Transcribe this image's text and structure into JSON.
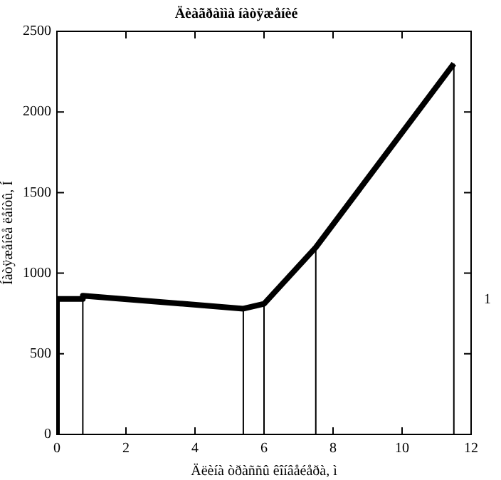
{
  "chart_data": {
    "type": "line",
    "title": "Äèàãðàììà íàòÿæåíèé",
    "xlabel": "Äëèíà òðàññû êîíâåéåðà, ì",
    "ylabel": "Íàòÿæåíèå ëåíòû, Í",
    "series": [
      {
        "color": "#000000",
        "x": [
          0,
          0,
          0.75,
          0.75,
          5.4,
          6,
          7.5,
          11.5
        ],
        "values": [
          0,
          840,
          840,
          860,
          780,
          810,
          1160,
          2300
        ]
      },
      {
        "color": "#000000",
        "x": [
          0.75,
          0.75
        ],
        "values": [
          0,
          860
        ]
      },
      {
        "color": "#000000",
        "x": [
          5.4,
          5.4
        ],
        "values": [
          0,
          780
        ]
      },
      {
        "color": "#000000",
        "x": [
          6,
          6
        ],
        "values": [
          0,
          810
        ]
      },
      {
        "color": "#000000",
        "x": [
          7.5,
          7.5
        ],
        "values": [
          0,
          1160
        ]
      },
      {
        "color": "#000000",
        "x": [
          11.5,
          11.5
        ],
        "values": [
          0,
          2300
        ]
      }
    ],
    "xlim": [
      0,
      12
    ],
    "xticks": [
      0,
      2,
      4,
      6,
      8,
      10,
      12
    ],
    "ylim": [
      0,
      2500
    ],
    "yticks": [
      0,
      500,
      1000,
      1500,
      2000,
      2500
    ],
    "grid": false,
    "legend": false,
    "marker": "none",
    "line_style": "solid",
    "annotations": [
      "1"
    ]
  }
}
